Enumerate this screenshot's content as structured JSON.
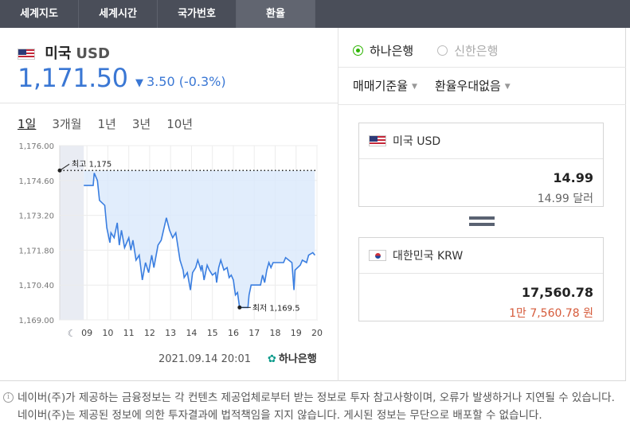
{
  "tabs": [
    "세계지도",
    "세계시간",
    "국가번호",
    "환율"
  ],
  "active_tab": 3,
  "currency": {
    "name": "미국",
    "code": "USD",
    "rate": "1,171.50",
    "change": "3.50",
    "change_pct": "(-0.3%)",
    "direction_symbol": "▼"
  },
  "periods": [
    "1일",
    "3개월",
    "1년",
    "3년",
    "10년"
  ],
  "active_period": 0,
  "chart_data": {
    "type": "line",
    "x_tick_labels": [
      "09",
      "10",
      "11",
      "12",
      "13",
      "14",
      "15",
      "16",
      "17",
      "18",
      "19",
      "20"
    ],
    "y_tick_labels": [
      "1,176.00",
      "1,174.60",
      "1,173.20",
      "1,171.80",
      "1,170.40",
      "1,169.00"
    ],
    "ylim": [
      1169.0,
      1176.0
    ],
    "xlim": [
      7.7,
      20.0
    ],
    "high_label": "최고 1,175",
    "low_label": "최저 1,169.5",
    "high": 1175.0,
    "low": 1169.5,
    "grid": true,
    "night_span": [
      7.7,
      8.85
    ],
    "points": [
      [
        8.85,
        1174.4
      ],
      [
        9.3,
        1174.4
      ],
      [
        9.35,
        1174.9
      ],
      [
        9.5,
        1174.6
      ],
      [
        9.6,
        1173.8
      ],
      [
        9.85,
        1173.6
      ],
      [
        9.95,
        1172.7
      ],
      [
        10.1,
        1172.1
      ],
      [
        10.15,
        1172.5
      ],
      [
        10.3,
        1172.3
      ],
      [
        10.45,
        1172.9
      ],
      [
        10.55,
        1172.0
      ],
      [
        10.65,
        1172.6
      ],
      [
        10.8,
        1171.9
      ],
      [
        11.0,
        1172.3
      ],
      [
        11.1,
        1171.8
      ],
      [
        11.2,
        1172.2
      ],
      [
        11.35,
        1171.4
      ],
      [
        11.5,
        1171.6
      ],
      [
        11.65,
        1170.6
      ],
      [
        11.8,
        1171.3
      ],
      [
        11.95,
        1170.9
      ],
      [
        12.1,
        1171.6
      ],
      [
        12.2,
        1171.1
      ],
      [
        12.4,
        1172.0
      ],
      [
        12.55,
        1172.2
      ],
      [
        12.8,
        1173.1
      ],
      [
        12.95,
        1172.6
      ],
      [
        13.1,
        1172.3
      ],
      [
        13.25,
        1172.5
      ],
      [
        13.45,
        1171.4
      ],
      [
        13.6,
        1171.0
      ],
      [
        13.65,
        1170.7
      ],
      [
        13.8,
        1170.9
      ],
      [
        13.95,
        1170.2
      ],
      [
        14.05,
        1170.9
      ],
      [
        14.2,
        1171.1
      ],
      [
        14.3,
        1171.4
      ],
      [
        14.45,
        1171.0
      ],
      [
        14.5,
        1171.2
      ],
      [
        14.6,
        1170.6
      ],
      [
        14.75,
        1171.2
      ],
      [
        14.85,
        1171.0
      ],
      [
        15.0,
        1170.8
      ],
      [
        15.15,
        1170.9
      ],
      [
        15.2,
        1170.5
      ],
      [
        15.3,
        1171.1
      ],
      [
        15.4,
        1171.4
      ],
      [
        15.55,
        1171.0
      ],
      [
        15.7,
        1171.1
      ],
      [
        15.8,
        1170.7
      ],
      [
        15.9,
        1170.8
      ],
      [
        16.0,
        1170.6
      ],
      [
        16.1,
        1170.0
      ],
      [
        16.2,
        1170.1
      ],
      [
        16.3,
        1169.5
      ],
      [
        16.7,
        1169.5
      ],
      [
        16.75,
        1170.0
      ],
      [
        16.85,
        1170.4
      ],
      [
        17.3,
        1170.4
      ],
      [
        17.4,
        1170.8
      ],
      [
        17.5,
        1170.5
      ],
      [
        17.6,
        1171.0
      ],
      [
        17.7,
        1171.3
      ],
      [
        17.8,
        1171.1
      ],
      [
        17.9,
        1171.3
      ],
      [
        18.4,
        1171.3
      ],
      [
        18.5,
        1171.5
      ],
      [
        18.65,
        1171.4
      ],
      [
        18.8,
        1171.3
      ],
      [
        18.9,
        1170.2
      ],
      [
        18.95,
        1171.0
      ],
      [
        19.2,
        1171.2
      ],
      [
        19.3,
        1171.4
      ],
      [
        19.5,
        1171.3
      ],
      [
        19.6,
        1171.6
      ],
      [
        19.8,
        1171.7
      ],
      [
        19.9,
        1171.6
      ]
    ]
  },
  "timestamp": "2021.09.14 20:01",
  "chart_bank": "하나은행",
  "banks": [
    "하나은행",
    "신한은행"
  ],
  "selected_bank": 0,
  "rate_type": "매매기준율",
  "preference": "환율우대없음",
  "from": {
    "country": "미국",
    "code": "USD",
    "value": "14.99",
    "sub": "14.99 달러"
  },
  "to": {
    "country": "대한민국",
    "code": "KRW",
    "value": "17,560.78",
    "sub": "1만 7,560.78 원"
  },
  "notice": "네이버(주)가 제공하는 금융정보는 각 컨텐츠 제공업체로부터 받는 정보로 투자 참고사항이며, 오류가 발생하거나 지연될 수 있습니다. 네이버(주)는 제공된 정보에 의한 투자결과에 법적책임을 지지 않습니다. 게시된 정보는 무단으로 배포할 수 없습니다.",
  "colors": {
    "accent": "#3a77d4",
    "line": "#3a7ee0",
    "fill": "#dceafb",
    "green": "#2db400",
    "red": "#d65b3b"
  }
}
